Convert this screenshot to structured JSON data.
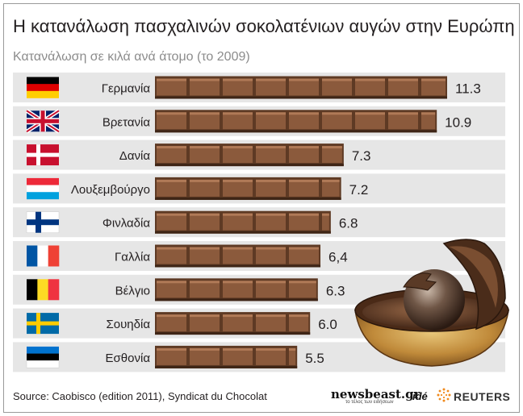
{
  "header": {
    "title": "Η κατανάλωση πασχαλινών σοκολατένιων αυγών στην Ευρώπη",
    "subtitle": "Κατανάλωση σε κιλά ανά άτομο (το 2009)"
  },
  "chart_data": {
    "type": "bar",
    "orientation": "horizontal",
    "categories": [
      "Γερμανία",
      "Βρετανία",
      "Δανία",
      "Λουξεμβούργο",
      "Φινλαδία",
      "Γαλλία",
      "Βέλγιο",
      "Σουηδία",
      "Εσθονία"
    ],
    "values": [
      11.3,
      10.9,
      7.3,
      7.2,
      6.8,
      6.4,
      6.3,
      6.0,
      5.5
    ],
    "value_labels": [
      "11.3",
      "10.9",
      "7.3",
      "7.2",
      "6.8",
      "6,4",
      "6.3",
      "6.0",
      "5.5"
    ],
    "flags": [
      "flag-germany",
      "flag-uk",
      "flag-denmark",
      "flag-luxembourg",
      "flag-finland",
      "flag-france",
      "flag-belgium",
      "flag-sweden",
      "flag-estonia"
    ],
    "bar_style": "chocolate bar",
    "colors": {
      "bar": "#8b5a3c",
      "bar_light": "#b07a57",
      "bar_dark": "#5e3a24",
      "row_band": "#e6e6e6"
    }
  },
  "footer": {
    "source": "Source: Caobisco (edition 2011), Syndicat du Chocolat",
    "brand_newsbeast": "newsbeast.gr",
    "brand_newsbeast_tag": "το τέλος των ειδήσεων",
    "brand_ide": "idé",
    "brand_reuters": "REUTERS"
  }
}
